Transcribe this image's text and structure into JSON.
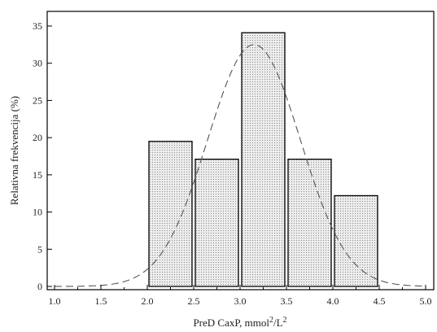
{
  "chart_data": {
    "type": "bar",
    "title": "",
    "xlabel": "PreD CaxP, mmol²/L²",
    "ylabel": "Relativna frekvencija (%)",
    "xlim": [
      1.0,
      5.0
    ],
    "ylim": [
      0,
      35
    ],
    "x_ticks": [
      "1.0",
      "1.5",
      "2.0",
      "2.5",
      "3.0",
      "3.5",
      "4.0",
      "4.5",
      "5.0"
    ],
    "y_ticks": [
      "0",
      "5",
      "10",
      "15",
      "20",
      "25",
      "30",
      "35"
    ],
    "bins": [
      {
        "from": 2.0,
        "to": 2.5,
        "value": 19.5
      },
      {
        "from": 2.5,
        "to": 3.0,
        "value": 17.1
      },
      {
        "from": 3.0,
        "to": 3.5,
        "value": 34.1
      },
      {
        "from": 3.5,
        "to": 4.0,
        "value": 17.1
      },
      {
        "from": 4.0,
        "to": 4.5,
        "value": 12.2
      }
    ],
    "fit_curve": {
      "type": "normal",
      "mean": 3.15,
      "sd": 0.5,
      "peak": 32.5,
      "style": "dashed"
    },
    "grid": false,
    "legend": "none",
    "bar_fill": "#e6e6e6",
    "bar_stroke": "#000000",
    "curve_color": "#555555"
  }
}
